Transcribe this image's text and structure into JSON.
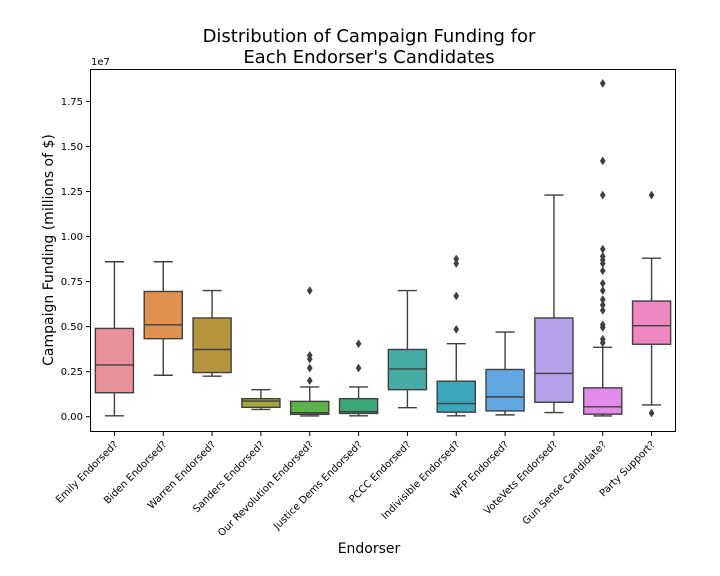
{
  "chart_data": {
    "type": "boxplot",
    "title": "Distribution of Campaign Funding for\nEach Endorser's Candidates",
    "xlabel": "Endorser",
    "ylabel": "Campaign Funding (millions of $)",
    "y_offset_label": "1e7",
    "ylim": [
      -850000,
      19300000
    ],
    "yticks": [
      0,
      2500000,
      5000000,
      7500000,
      10000000,
      12500000,
      15000000,
      17500000
    ],
    "ytick_labels": [
      "0.00",
      "0.25",
      "0.50",
      "0.75",
      "1.00",
      "1.25",
      "1.50",
      "1.75"
    ],
    "grid": false,
    "categories": [
      "Emily Endorsed?",
      "Biden Endorsed?",
      "Warren Endorsed?",
      "Sanders Endorsed?",
      "Our Revolution Endorsed?",
      "Justice Dems Endorsed?",
      "PCCC Endorsed?",
      "Indivisible Endorsed?",
      "WFP Endorsed?",
      "VoteVets Endorsed?",
      "Gun Sense Candidate?",
      "Party Support?"
    ],
    "colors": [
      "#e8919b",
      "#e0904f",
      "#b7953f",
      "#a5a53d",
      "#5eb24a",
      "#3ba879",
      "#46aca3",
      "#3ca6bc",
      "#62a9e3",
      "#b5a2eb",
      "#e38bea",
      "#ee86c1"
    ],
    "boxes": [
      {
        "whislo": 50000,
        "q1": 1330000,
        "median": 2870000,
        "q3": 4900000,
        "whishi": 8600000,
        "fliers": []
      },
      {
        "whislo": 2300000,
        "q1": 4330000,
        "median": 5100000,
        "q3": 6950000,
        "whishi": 8600000,
        "fliers": []
      },
      {
        "whislo": 2250000,
        "q1": 2450000,
        "median": 3730000,
        "q3": 5480000,
        "whishi": 7000000,
        "fliers": []
      },
      {
        "whislo": 400000,
        "q1": 520000,
        "median": 870000,
        "q3": 1000000,
        "whishi": 1500000,
        "fliers": []
      },
      {
        "whislo": 40000,
        "q1": 130000,
        "median": 220000,
        "q3": 850000,
        "whishi": 1650000,
        "fliers": [
          2000000,
          2700000,
          3200000,
          3400000,
          7000000
        ]
      },
      {
        "whislo": 50000,
        "q1": 180000,
        "median": 280000,
        "q3": 1000000,
        "whishi": 1650000,
        "fliers": [
          2700000,
          4050000
        ]
      },
      {
        "whislo": 500000,
        "q1": 1500000,
        "median": 2650000,
        "q3": 3730000,
        "whishi": 7000000,
        "fliers": []
      },
      {
        "whislo": 50000,
        "q1": 250000,
        "median": 730000,
        "q3": 1970000,
        "whishi": 4050000,
        "fliers": [
          4850000,
          6700000,
          8500000,
          8750000
        ]
      },
      {
        "whislo": 100000,
        "q1": 320000,
        "median": 1100000,
        "q3": 2620000,
        "whishi": 4700000,
        "fliers": []
      },
      {
        "whislo": 230000,
        "q1": 800000,
        "median": 2400000,
        "q3": 5480000,
        "whishi": 12300000,
        "fliers": []
      },
      {
        "whislo": 40000,
        "q1": 140000,
        "median": 550000,
        "q3": 1600000,
        "whishi": 3850000,
        "fliers": [
          4100000,
          4300000,
          4950000,
          5100000,
          5900000,
          6200000,
          6500000,
          7000000,
          7400000,
          8100000,
          8500000,
          8700000,
          8900000,
          9300000,
          12300000,
          14200000,
          18500000
        ]
      },
      {
        "whislo": 650000,
        "q1": 4020000,
        "median": 5050000,
        "q3": 6420000,
        "whishi": 8800000,
        "fliers": [
          200000,
          12300000
        ]
      }
    ]
  }
}
